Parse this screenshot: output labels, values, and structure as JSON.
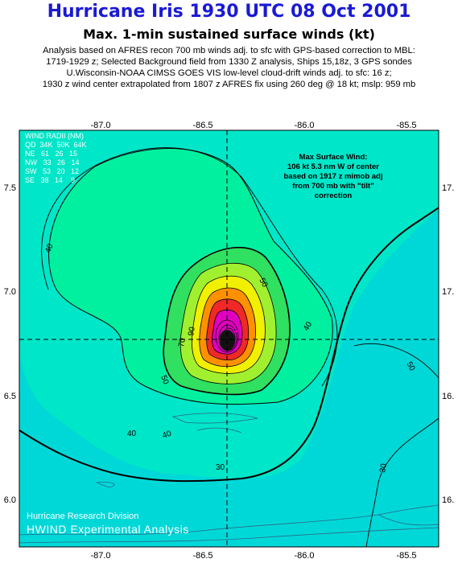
{
  "title": "Hurricane Iris 1930 UTC 08 Oct 2001",
  "subtitle": "Max. 1-min sustained surface winds (kt)",
  "description_lines": [
    "Analysis based on AFRES recon 700 mb winds adj. to sfc with GPS-based correction to MBL:",
    "1719-1929 z; Selected Background field from 1330 Z analysis, Ships 15,18z, 3 GPS sondes",
    "U.Wisconsin-NOAA CIMSS GOES VIS low-level cloud-drift winds adj. to sfc: 16 z;",
    "1930 z wind center extrapolated from 1807 z AFRES fix using 260 deg @ 18 kt; mslp: 959 mb"
  ],
  "axes": {
    "x_ticks_top": [
      "-87.0",
      "-86.5",
      "-86.0",
      "-85.5"
    ],
    "x_ticks_bottom": [
      "-87.0",
      "-86.5",
      "-86.0",
      "-85.5"
    ],
    "y_ticks_left": [
      "7.5",
      "7.0",
      "6.5",
      "6.0"
    ],
    "y_ticks_right": [
      "17.",
      "17.",
      "16.",
      "16."
    ]
  },
  "wind_radii": {
    "header1": "WIND RADII (NM)",
    "header2": "QD  34K  50K  64K",
    "rows": [
      "NE   61   26   15",
      "NW   33   26   14",
      "SW   53   20   12",
      "SE   38   14    9"
    ]
  },
  "max_wind": {
    "lines": [
      "Max Surface Wind:",
      "106 kt 5.3 nm W of center",
      "based on  1917 z mimob adj",
      "from 700 mb with \"tilt\"",
      "correction"
    ]
  },
  "contour_labels": [
    "40",
    "40",
    "40",
    "40",
    "50",
    "50",
    "50",
    "30",
    "30",
    "70",
    "90"
  ],
  "credits": {
    "line1": "Hurricane Research Division",
    "line2": "HWIND Experimental Analysis"
  },
  "colors": {
    "title": "#1a1ad4",
    "sea": "#00d8d8",
    "outer_field": "#00e6c8",
    "band_40": "#00f0a0",
    "band_50": "#30e060",
    "band_60": "#a0f030",
    "band_70": "#f0f000",
    "band_80": "#ff9000",
    "band_90": "#f02828",
    "band_100": "#e000c0",
    "land": "#6ab0c8"
  }
}
